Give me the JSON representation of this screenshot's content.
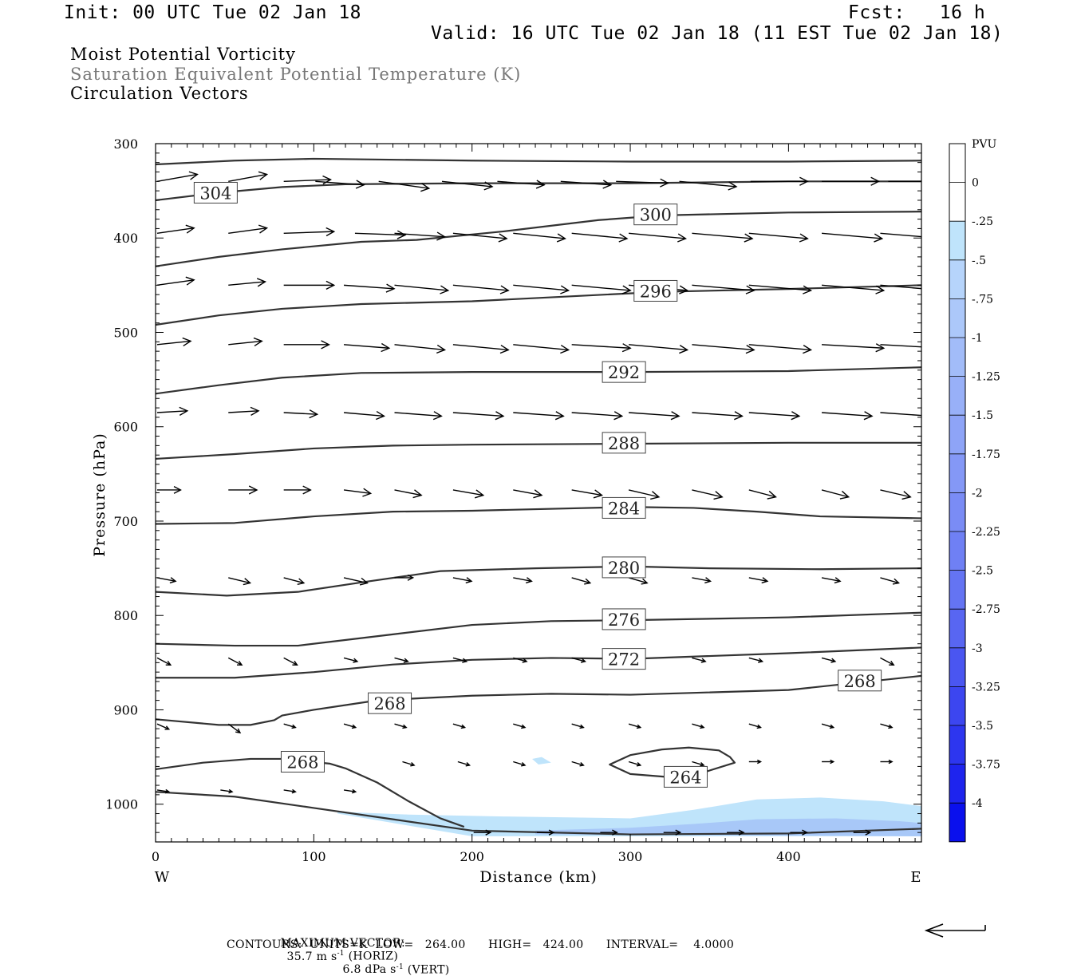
{
  "header": {
    "init": "Init: 00 UTC Tue 02 Jan 18",
    "fcst": "Fcst:   16 h",
    "valid": "Valid: 16 UTC Tue 02 Jan 18 (11 EST Tue 02 Jan 18)",
    "fields": [
      "Moist Potential Vorticity",
      "Saturation Equivalent Potential Temperature (K)",
      "Circulation Vectors"
    ]
  },
  "colors": {
    "contour": "#333333",
    "negative_fill_light": "#bfe4fb",
    "negative_fill_mid": "#a8c8f8",
    "grey_text": "#777777"
  },
  "chart_data": {
    "type": "cross-section",
    "xlabel": "Distance (km)",
    "ylabel": "Pressure (hPa)",
    "xlim": [
      0,
      484
    ],
    "ylim": [
      1040,
      300
    ],
    "y_scale": "linear",
    "x_ticks": [
      0,
      100,
      200,
      300,
      400
    ],
    "y_ticks": [
      300,
      400,
      500,
      600,
      700,
      800,
      900,
      1000
    ],
    "x_end_labels": {
      "left": "W",
      "right": "E"
    },
    "colorbar": {
      "unit": "PVU",
      "levels": [
        "0",
        "-.25",
        "-.5",
        "-.75",
        "-1",
        "-1.25",
        "-1.5",
        "-1.75",
        "-2",
        "-2.25",
        "-2.5",
        "-2.75",
        "-3",
        "-3.25",
        "-3.5",
        "-3.75",
        "-4"
      ],
      "colors": [
        "#ffffff",
        "#ffffff",
        "#bfe4fb",
        "#b6d4fb",
        "#acc8fa",
        "#a2bcf9",
        "#98b0f8",
        "#8ea4f7",
        "#8498f6",
        "#7a8cf5",
        "#6f80f4",
        "#6474f3",
        "#5866f2",
        "#4a56f1",
        "#3c46f0",
        "#2d36ef",
        "#1e24ee",
        "#0a10ed"
      ]
    },
    "isentropes": [
      {
        "label": "304",
        "label_at": [
          38,
          352
        ],
        "points": [
          [
            0,
            322
          ],
          [
            50,
            318
          ],
          [
            100,
            316
          ],
          [
            200,
            318
          ],
          [
            300,
            319
          ],
          [
            400,
            319
          ],
          [
            484,
            318
          ]
        ]
      },
      {
        "label": "",
        "points": [
          [
            0,
            360
          ],
          [
            40,
            352
          ],
          [
            80,
            346
          ],
          [
            120,
            343
          ],
          [
            200,
            342
          ],
          [
            300,
            342
          ],
          [
            400,
            340
          ],
          [
            484,
            340
          ]
        ]
      },
      {
        "label": "300",
        "label_at": [
          316,
          375
        ],
        "points": [
          [
            0,
            430
          ],
          [
            40,
            420
          ],
          [
            80,
            412
          ],
          [
            130,
            404
          ],
          [
            165,
            402
          ],
          [
            220,
            393
          ],
          [
            280,
            381
          ],
          [
            320,
            376
          ],
          [
            400,
            373
          ],
          [
            484,
            372
          ]
        ]
      },
      {
        "label": "296",
        "label_at": [
          316,
          456
        ],
        "points": [
          [
            0,
            492
          ],
          [
            40,
            482
          ],
          [
            80,
            475
          ],
          [
            130,
            470
          ],
          [
            200,
            467
          ],
          [
            260,
            462
          ],
          [
            320,
            457
          ],
          [
            400,
            454
          ],
          [
            484,
            450
          ]
        ]
      },
      {
        "label": "292",
        "label_at": [
          296,
          542
        ],
        "points": [
          [
            0,
            565
          ],
          [
            40,
            556
          ],
          [
            80,
            548
          ],
          [
            130,
            543
          ],
          [
            200,
            542
          ],
          [
            300,
            542
          ],
          [
            400,
            541
          ],
          [
            484,
            537
          ]
        ]
      },
      {
        "label": "288",
        "label_at": [
          296,
          617
        ],
        "points": [
          [
            0,
            634
          ],
          [
            50,
            629
          ],
          [
            100,
            623
          ],
          [
            150,
            620
          ],
          [
            200,
            619
          ],
          [
            300,
            618
          ],
          [
            400,
            617
          ],
          [
            484,
            617
          ]
        ]
      },
      {
        "label": "284",
        "label_at": [
          296,
          686
        ],
        "points": [
          [
            0,
            703
          ],
          [
            50,
            702
          ],
          [
            100,
            695
          ],
          [
            150,
            690
          ],
          [
            200,
            689
          ],
          [
            300,
            685
          ],
          [
            340,
            686
          ],
          [
            380,
            690
          ],
          [
            420,
            695
          ],
          [
            484,
            697
          ]
        ]
      },
      {
        "label": "280",
        "label_at": [
          296,
          749
        ],
        "points": [
          [
            0,
            775
          ],
          [
            45,
            779
          ],
          [
            90,
            775
          ],
          [
            130,
            765
          ],
          [
            180,
            753
          ],
          [
            240,
            750
          ],
          [
            300,
            748
          ],
          [
            350,
            750
          ],
          [
            420,
            751
          ],
          [
            484,
            750
          ]
        ]
      },
      {
        "label": "276",
        "label_at": [
          296,
          804
        ],
        "points": [
          [
            0,
            830
          ],
          [
            50,
            832
          ],
          [
            90,
            832
          ],
          [
            150,
            820
          ],
          [
            200,
            810
          ],
          [
            250,
            806
          ],
          [
            300,
            805
          ],
          [
            400,
            802
          ],
          [
            484,
            797
          ]
        ]
      },
      {
        "label": "272",
        "label_at": [
          296,
          846
        ],
        "points": [
          [
            0,
            866
          ],
          [
            50,
            866
          ],
          [
            100,
            860
          ],
          [
            150,
            852
          ],
          [
            200,
            847
          ],
          [
            250,
            845
          ],
          [
            300,
            846
          ],
          [
            400,
            840
          ],
          [
            484,
            834
          ]
        ]
      },
      {
        "label": "268",
        "label_at": [
          148,
          893
        ],
        "points": [
          [
            0,
            910
          ],
          [
            40,
            916
          ],
          [
            60,
            916
          ],
          [
            75,
            911
          ],
          [
            80,
            906
          ],
          [
            100,
            900
          ],
          [
            140,
            890
          ],
          [
            200,
            885
          ],
          [
            250,
            883
          ],
          [
            300,
            884
          ],
          [
            400,
            879
          ],
          [
            484,
            864
          ]
        ]
      },
      {
        "label": "268",
        "label_at": [
          445,
          869
        ],
        "points": []
      },
      {
        "label": "268",
        "label_at": [
          93,
          955
        ],
        "points": [
          [
            0,
            963
          ],
          [
            30,
            956
          ],
          [
            60,
            952
          ],
          [
            80,
            952
          ],
          [
            110,
            957
          ],
          [
            120,
            962
          ],
          [
            140,
            977
          ],
          [
            160,
            997
          ],
          [
            180,
            1015
          ],
          [
            195,
            1024
          ]
        ]
      },
      {
        "label": "",
        "points": [
          [
            0,
            987
          ],
          [
            50,
            992
          ],
          [
            100,
            1004
          ],
          [
            150,
            1016
          ],
          [
            200,
            1028
          ],
          [
            300,
            1032
          ],
          [
            400,
            1031
          ],
          [
            484,
            1026
          ]
        ]
      },
      {
        "label": "264",
        "label_at": [
          335,
          971
        ],
        "closed": true,
        "points": [
          [
            287,
            958
          ],
          [
            300,
            948
          ],
          [
            320,
            942
          ],
          [
            337,
            940
          ],
          [
            356,
            943
          ],
          [
            363,
            950
          ],
          [
            366,
            956
          ],
          [
            345,
            967
          ],
          [
            330,
            972
          ],
          [
            300,
            968
          ]
        ]
      }
    ],
    "negative_pv_areas": [
      {
        "level": "-.25",
        "points": [
          [
            115,
            1008
          ],
          [
            160,
            1011
          ],
          [
            220,
            1013
          ],
          [
            300,
            1015
          ],
          [
            340,
            1006
          ],
          [
            380,
            995
          ],
          [
            420,
            993
          ],
          [
            460,
            997
          ],
          [
            484,
            1002
          ],
          [
            484,
            1034
          ],
          [
            200,
            1034
          ],
          [
            115,
            1010
          ]
        ]
      },
      {
        "level": "-.5",
        "points": [
          [
            240,
            1028
          ],
          [
            300,
            1025
          ],
          [
            340,
            1021
          ],
          [
            380,
            1016
          ],
          [
            430,
            1015
          ],
          [
            470,
            1018
          ],
          [
            484,
            1020
          ],
          [
            484,
            1034
          ],
          [
            240,
            1032
          ]
        ]
      },
      {
        "level": "-.25",
        "points": [
          [
            238,
            952
          ],
          [
            244,
            950
          ],
          [
            250,
            956
          ],
          [
            242,
            958
          ]
        ]
      }
    ],
    "vectors": [
      {
        "p": 340,
        "x": [
          0,
          45,
          80,
          100,
          140,
          180,
          215,
          255,
          290,
          330,
          375,
          420,
          462
        ],
        "u": [
          24,
          23,
          28,
          29,
          30,
          30,
          28,
          30,
          31,
          34,
          34,
          34,
          38
        ],
        "w": [
          -4,
          -4,
          -1,
          2,
          4,
          3,
          2,
          2,
          1,
          3,
          0,
          0,
          0
        ]
      },
      {
        "p": 395,
        "x": [
          0,
          45,
          80,
          125,
          150,
          187,
          225,
          262,
          298,
          338,
          374,
          420,
          457
        ],
        "u": [
          22,
          23,
          30,
          30,
          30,
          32,
          31,
          33,
          34,
          36,
          35,
          36,
          38
        ],
        "w": [
          -3,
          -3,
          -1,
          1,
          2,
          3,
          3,
          3,
          3,
          3,
          3,
          3,
          3
        ]
      },
      {
        "p": 450,
        "x": [
          0,
          45,
          80,
          118,
          150,
          187,
          225,
          262,
          298,
          338,
          374,
          420,
          457
        ],
        "u": [
          22,
          22,
          30,
          30,
          32,
          33,
          33,
          35,
          35,
          37,
          37,
          37,
          38
        ],
        "w": [
          -3,
          -2,
          0,
          2,
          3,
          3,
          3,
          3,
          3,
          3,
          3,
          3,
          3
        ]
      },
      {
        "p": 513,
        "x": [
          0,
          45,
          80,
          118,
          150,
          187,
          225,
          262,
          298,
          338,
          374,
          420,
          457
        ],
        "u": [
          20,
          20,
          27,
          27,
          30,
          33,
          33,
          35,
          35,
          37,
          37,
          37,
          38
        ],
        "w": [
          -2,
          -2,
          0,
          2,
          3,
          3,
          3,
          2,
          3,
          3,
          3,
          2,
          2
        ]
      },
      {
        "p": 585,
        "x": [
          0,
          45,
          80,
          118,
          150,
          187,
          225,
          262,
          298,
          338,
          374,
          420,
          457
        ],
        "u": [
          18,
          18,
          20,
          24,
          28,
          30,
          30,
          30,
          30,
          30,
          30,
          30,
          30
        ],
        "w": [
          -1,
          -1,
          1,
          2,
          2,
          2,
          2,
          2,
          2,
          2,
          2,
          2,
          2
        ]
      },
      {
        "p": 667,
        "x": [
          0,
          45,
          80,
          118,
          150,
          187,
          225,
          262,
          298,
          338,
          374,
          420,
          457
        ],
        "u": [
          14,
          17,
          16,
          16,
          16,
          18,
          17,
          18,
          18,
          18,
          16,
          16,
          18
        ],
        "w": [
          0,
          0,
          0,
          2,
          3,
          3,
          3,
          3,
          4,
          4,
          4,
          4,
          4
        ]
      },
      {
        "p": 760,
        "x": [
          0,
          45,
          80,
          118,
          150,
          187,
          225,
          262,
          298,
          338,
          374,
          420,
          457
        ],
        "u": [
          11,
          13,
          12,
          14,
          11,
          11,
          11,
          11,
          11,
          11,
          11,
          11,
          11
        ],
        "w": [
          2,
          3,
          3,
          3,
          0,
          2,
          2,
          3,
          3,
          2,
          2,
          2,
          3
        ]
      },
      {
        "p": 845,
        "x": [
          0,
          45,
          80,
          118,
          150,
          187,
          225,
          262,
          298,
          338,
          374,
          420,
          457
        ],
        "u": [
          8,
          8,
          8,
          8,
          8,
          8,
          8,
          8,
          8,
          8,
          8,
          8,
          8
        ],
        "w": [
          4,
          4,
          4,
          2,
          2,
          2,
          2,
          2,
          2,
          2,
          2,
          2,
          4
        ]
      },
      {
        "p": 915,
        "x": [
          0,
          45,
          80,
          118,
          150,
          187,
          225,
          262,
          298,
          338,
          374,
          420,
          457
        ],
        "u": [
          7,
          7,
          7,
          7,
          7,
          7,
          7,
          7,
          7,
          7,
          7,
          7,
          7
        ],
        "w": [
          3,
          5,
          2,
          2,
          2,
          2,
          2,
          2,
          2,
          2,
          2,
          2,
          2
        ]
      },
      {
        "p": 955,
        "x": [
          155,
          190,
          225,
          262,
          298,
          338,
          374,
          420,
          457
        ],
        "u": [
          7,
          7,
          7,
          7,
          7,
          7,
          7,
          7,
          7
        ],
        "w": [
          2,
          2,
          2,
          2,
          2,
          2,
          0,
          0,
          0
        ]
      },
      {
        "p": 985,
        "x": [
          0,
          40,
          80,
          118
        ],
        "u": [
          7,
          7,
          7,
          7
        ],
        "w": [
          1,
          1,
          1,
          1
        ]
      },
      {
        "p": 1030,
        "x": [
          200,
          240,
          280,
          320,
          360,
          400,
          440
        ],
        "u": [
          10,
          10,
          10,
          10,
          10,
          10,
          10
        ],
        "w": [
          0,
          0,
          0,
          0,
          0,
          0,
          0
        ]
      }
    ]
  },
  "footer": {
    "max_vector_label": "MAXIMUM VECTOR:",
    "horiz_value": "35.7 m s",
    "horiz_exp": "-1",
    "horiz_tag": " (HORIZ)",
    "vert_value": "6.8 dPa s",
    "vert_exp": "-1",
    "vert_tag": " (VERT)",
    "contours_line": "CONTOURS:  UNITS=K  LOW=   264.00      HIGH=   424.00      INTERVAL=    4.0000"
  }
}
